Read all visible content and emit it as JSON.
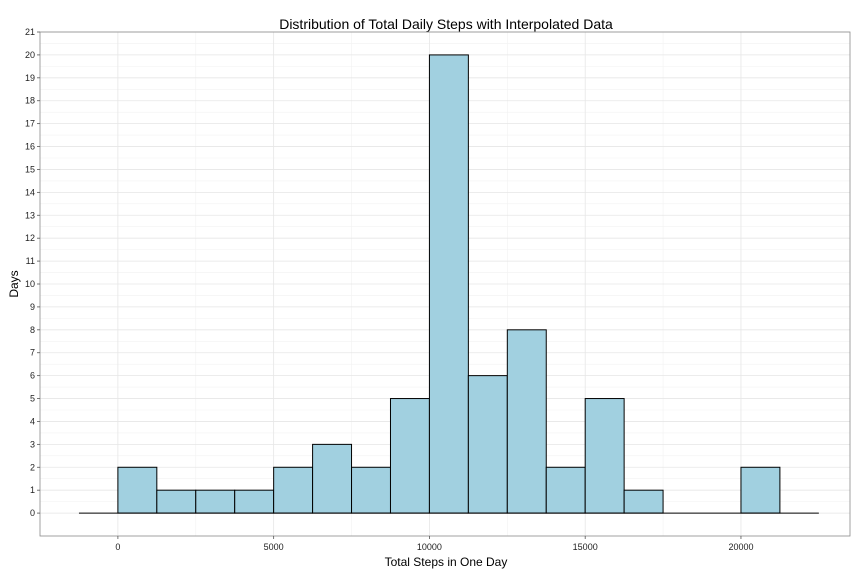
{
  "chart_data": {
    "type": "bar",
    "title": "Distribution of Total Daily Steps with Interpolated Data",
    "xlabel": "Total Steps in One Day",
    "ylabel": "Days",
    "bin_width": 1250,
    "bins": [
      {
        "start": 0,
        "count": 2
      },
      {
        "start": 1250,
        "count": 1
      },
      {
        "start": 2500,
        "count": 1
      },
      {
        "start": 3750,
        "count": 1
      },
      {
        "start": 5000,
        "count": 2
      },
      {
        "start": 6250,
        "count": 3
      },
      {
        "start": 7500,
        "count": 2
      },
      {
        "start": 8750,
        "count": 5
      },
      {
        "start": 10000,
        "count": 20
      },
      {
        "start": 11250,
        "count": 6
      },
      {
        "start": 12500,
        "count": 8
      },
      {
        "start": 13750,
        "count": 2
      },
      {
        "start": 15000,
        "count": 5
      },
      {
        "start": 16250,
        "count": 1
      },
      {
        "start": 17500,
        "count": 0
      },
      {
        "start": 18750,
        "count": 0
      },
      {
        "start": 20000,
        "count": 2
      }
    ],
    "xlim": [
      -2500,
      23500
    ],
    "ylim": [
      -1,
      21
    ],
    "baseline_range": [
      -1250,
      22500
    ],
    "x_ticks": [
      0,
      5000,
      10000,
      15000,
      20000
    ],
    "x_tick_labels": [
      "0",
      "5000",
      "10000",
      "15000",
      "20000"
    ],
    "y_ticks": [
      0,
      1,
      2,
      3,
      4,
      5,
      6,
      7,
      8,
      9,
      10,
      11,
      12,
      13,
      14,
      15,
      16,
      17,
      18,
      19,
      20,
      21
    ],
    "y_tick_labels": [
      "0",
      "1",
      "2",
      "3",
      "4",
      "5",
      "6",
      "7",
      "8",
      "9",
      "10",
      "11",
      "12",
      "13",
      "14",
      "15",
      "16",
      "17",
      "18",
      "19",
      "20",
      "21"
    ],
    "grid": true,
    "legend": "none",
    "colors": {
      "bar_fill": "#a1d0e0",
      "bar_stroke": "#000000",
      "background": "#ffffff"
    }
  }
}
